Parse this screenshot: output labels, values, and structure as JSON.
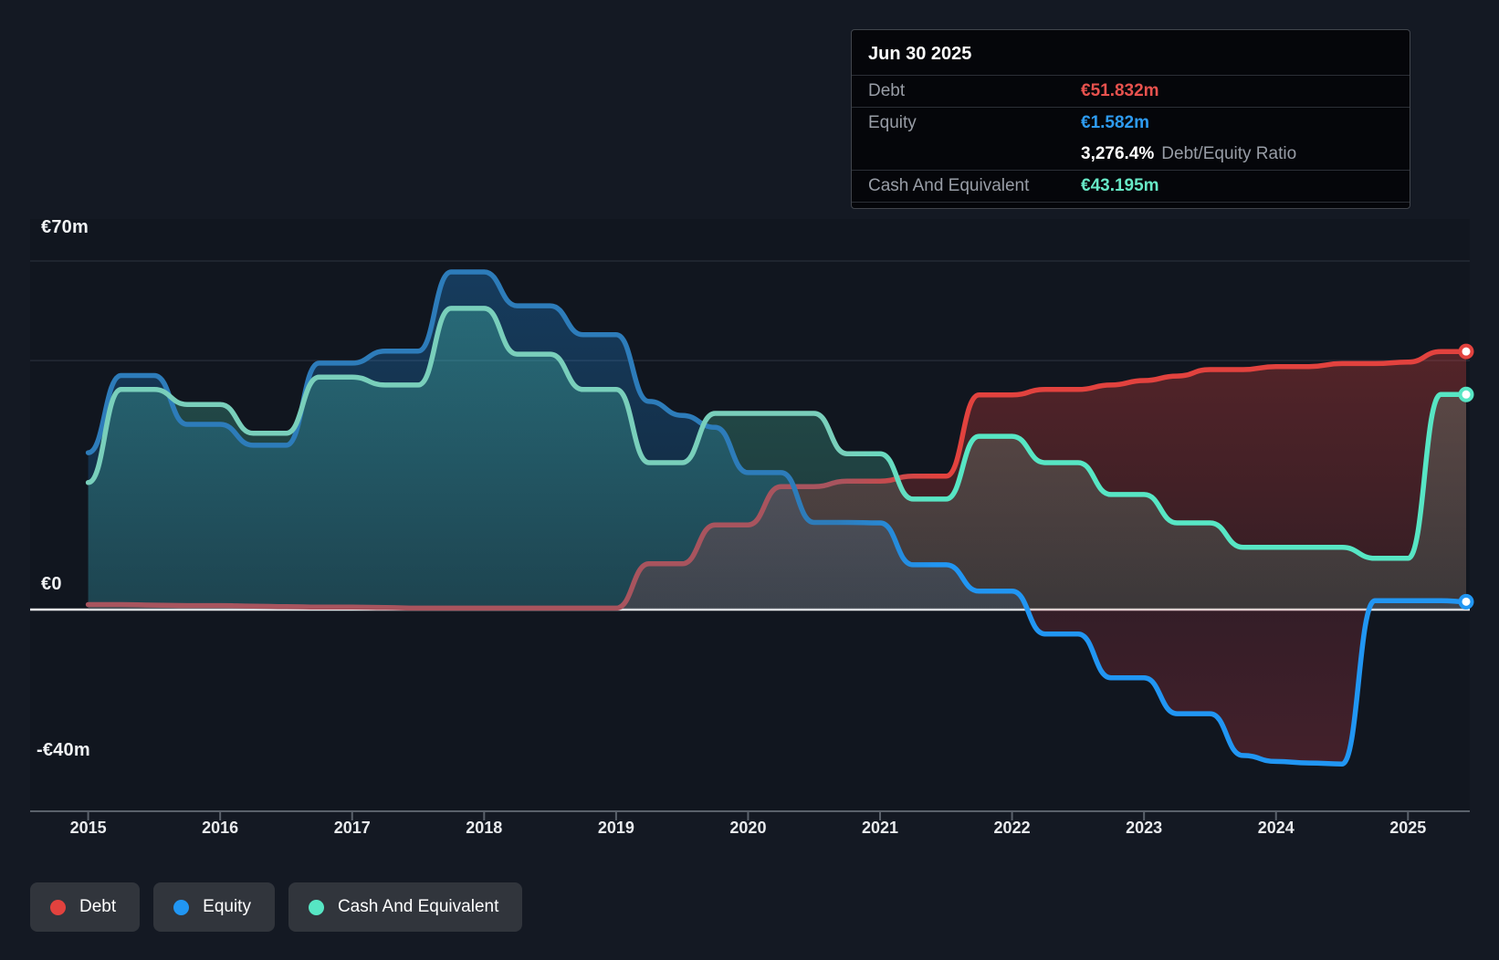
{
  "tooltip": {
    "title": "Jun 30 2025",
    "rows": {
      "debt": {
        "label": "Debt",
        "value": "€51.832m"
      },
      "equity": {
        "label": "Equity",
        "value": "€1.582m"
      },
      "ratio": {
        "value": "3,276.4%",
        "label": "Debt/Equity Ratio"
      },
      "cash": {
        "label": "Cash And Equivalent",
        "value": "€43.195m"
      }
    }
  },
  "axes": {
    "y_labels": [
      {
        "text": "€70m",
        "value": 70
      },
      {
        "text": "€0",
        "value": 0
      },
      {
        "text": "-€40m",
        "value": -40
      }
    ],
    "x_ticks": [
      "2015",
      "2016",
      "2017",
      "2018",
      "2019",
      "2020",
      "2021",
      "2022",
      "2023",
      "2024",
      "2025"
    ],
    "gridline_values": [
      70,
      50
    ],
    "zero_value": 0
  },
  "legend": [
    {
      "label": "Debt",
      "color": "#e2423e"
    },
    {
      "label": "Equity",
      "color": "#2196f3"
    },
    {
      "label": "Cash And Equivalent",
      "color": "#57e6c4"
    }
  ],
  "colors": {
    "debt": "#e2423e",
    "equity": "#2196f3",
    "cash": "#57e6c4",
    "debt_dim": "#a8545e",
    "equity_dim": "#2d7cba",
    "cash_dim": "#79cfbb",
    "background": "#141923",
    "plot_bg": "#11161f",
    "grid": "#242a35",
    "zero_line": "#edeef0",
    "axis": "#5a616b",
    "marker_fill": "#ffffff"
  },
  "chart_data": {
    "type": "area",
    "title": "Debt to Equity History and Analysis",
    "x_unit": "year (quarterly samples)",
    "y_unit": "EUR millions",
    "xlim": [
      2015,
      2025.6
    ],
    "ylim": [
      -40,
      70
    ],
    "legend_position": "bottom-left",
    "last_point_date": "Jun 30 2025",
    "x": [
      2015,
      2015.25,
      2015.5,
      2015.75,
      2016,
      2016.25,
      2016.5,
      2016.75,
      2017,
      2017.25,
      2017.5,
      2017.75,
      2018,
      2018.25,
      2018.5,
      2018.75,
      2019,
      2019.25,
      2019.5,
      2019.75,
      2020,
      2020.25,
      2020.5,
      2020.75,
      2021,
      2021.25,
      2021.5,
      2021.75,
      2022,
      2022.25,
      2022.5,
      2022.75,
      2023,
      2023.25,
      2023.5,
      2023.75,
      2024,
      2024.25,
      2024.5,
      2024.75,
      2025,
      2025.25,
      2025.5
    ],
    "series": [
      {
        "name": "Debt",
        "color_key": "debt",
        "values": [
          1,
          1,
          0.9,
          0.8,
          0.8,
          0.7,
          0.6,
          0.5,
          0.5,
          0.4,
          0.3,
          0.3,
          0.3,
          0.3,
          0.3,
          0.3,
          0.3,
          9.2,
          9.2,
          17,
          17,
          24.7,
          24.7,
          25.8,
          25.8,
          26.8,
          26.8,
          43.1,
          43.1,
          44.2,
          44.2,
          45.1,
          46,
          46.9,
          48.2,
          48.2,
          48.8,
          48.8,
          49.4,
          49.4,
          49.7,
          51.8,
          51.832
        ]
      },
      {
        "name": "Equity",
        "color_key": "equity",
        "values": [
          31.5,
          47,
          47,
          37.2,
          37.2,
          33,
          33,
          49.5,
          49.5,
          51.9,
          51.9,
          67.8,
          67.8,
          61,
          61,
          55.2,
          55.2,
          41.8,
          39,
          36.6,
          27.5,
          27.5,
          17.5,
          17.5,
          17.4,
          9,
          9,
          3.7,
          3.7,
          -4.9,
          -4.9,
          -13.7,
          -13.7,
          -20.9,
          -20.9,
          -29.3,
          -30.5,
          -30.8,
          -31,
          1.8,
          1.8,
          1.8,
          1.582
        ]
      },
      {
        "name": "Cash And Equivalent",
        "color_key": "cash",
        "values": [
          25.5,
          44.2,
          44.2,
          41.2,
          41.2,
          35.4,
          35.4,
          46.7,
          46.7,
          45.1,
          45.1,
          60.5,
          60.5,
          51.3,
          51.3,
          44.2,
          44.2,
          29.5,
          29.5,
          39.4,
          39.4,
          39.4,
          39.4,
          31.3,
          31.3,
          22.2,
          22.2,
          34.8,
          34.8,
          29.5,
          29.5,
          23.1,
          23.1,
          17.4,
          17.4,
          12.5,
          12.5,
          12.5,
          12.5,
          10.3,
          10.3,
          43.2,
          43.195
        ]
      }
    ]
  }
}
